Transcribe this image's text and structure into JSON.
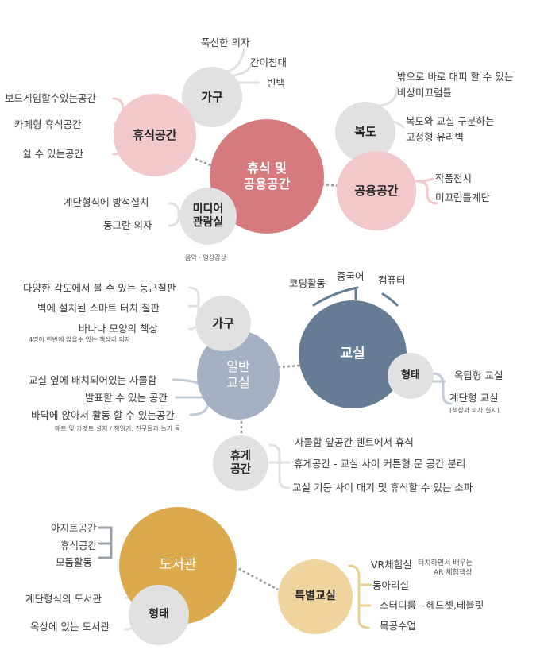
{
  "colors": {
    "rest_main": "#d77a7d",
    "rest_sub": "#f2c8cb",
    "gray_node": "#e2e1e1",
    "class_main": "#667c95",
    "class_general": "#a3b1c2",
    "library_main": "#dcaa4c",
    "library_special": "#f0d49d",
    "link_rest": "#f2c8cb",
    "link_class": "#c2cbd6",
    "link_library": "#ead08e"
  },
  "section1": {
    "center": [
      "휴식 및",
      "공용공간"
    ],
    "rest_space": {
      "title": "휴식공간",
      "items": [
        "보드게임할수있는공간",
        "카페형 휴식공간",
        "쉴 수 있는공간"
      ]
    },
    "furniture": {
      "title": "가구",
      "items": [
        "푹신한 의자",
        "간이침대",
        "빈백"
      ]
    },
    "media_room": {
      "title": [
        "미디어",
        "관람실"
      ],
      "items": [
        "계단형식에 방석설치",
        "동그란 의자"
      ],
      "note": "음악 · 영상감상"
    },
    "hallway": {
      "title": "복도",
      "items": [
        "밖으로 바로 대피 할 수 있는",
        "비상미끄럼틀",
        "복도와 교실 구분하는",
        "고정형 유리벽"
      ]
    },
    "public_space": {
      "title": "공용공간",
      "items": [
        "작품전시",
        "미끄럼틀계단"
      ]
    }
  },
  "section2": {
    "classroom": {
      "title": "교실",
      "subjects": [
        "코딩활동",
        "중국어",
        "컴퓨터"
      ]
    },
    "general": {
      "title": [
        "일반",
        "교실"
      ]
    },
    "furniture": {
      "title": "가구",
      "items": [
        "다양한 각도에서 볼 수 있는 둥근칠판",
        "벽에 설치된 스마트 터치 칠판",
        "바나나 모양의 책상"
      ],
      "note": "4명이 한번에 앉을수 있는 책상과 의자"
    },
    "general_items": [
      "교실 옆에 배치되어있는 사물함",
      "발표할 수 있는 공간",
      "바닥에 앉아서 활동 할 수 있는공간"
    ],
    "general_note": "매트 및 카펫트 설치 / 책읽기, 친구들과 놀기 등",
    "form": {
      "title": "형태",
      "items": [
        "옥탑형 교실",
        "계단형 교실"
      ],
      "note": "(책상과 의자 설치)"
    },
    "rest": {
      "title": [
        "휴게",
        "공간"
      ],
      "items": [
        "사물함 앞공간 텐트에서 휴식",
        "휴게공간 - 교실 사이 커튼형 문 공간 분리",
        "교실 기둥 사이 대기 및 휴식할 수 있는 소파"
      ]
    }
  },
  "section3": {
    "library": {
      "title": "도서관",
      "items": [
        "아지트공간",
        "휴식공간",
        "모둠활동"
      ]
    },
    "form": {
      "title": "형태",
      "items": [
        "계단형식의 도서관",
        "옥상에 있는 도서관"
      ]
    },
    "special": {
      "title": "특별교실",
      "items": [
        "VR체험실",
        "동아리실",
        "스터디룸 - 헤드셋,테블릿",
        "목공수업"
      ],
      "vr_note": [
        "터치하면서 배우는",
        "AR 체험책상"
      ]
    }
  }
}
